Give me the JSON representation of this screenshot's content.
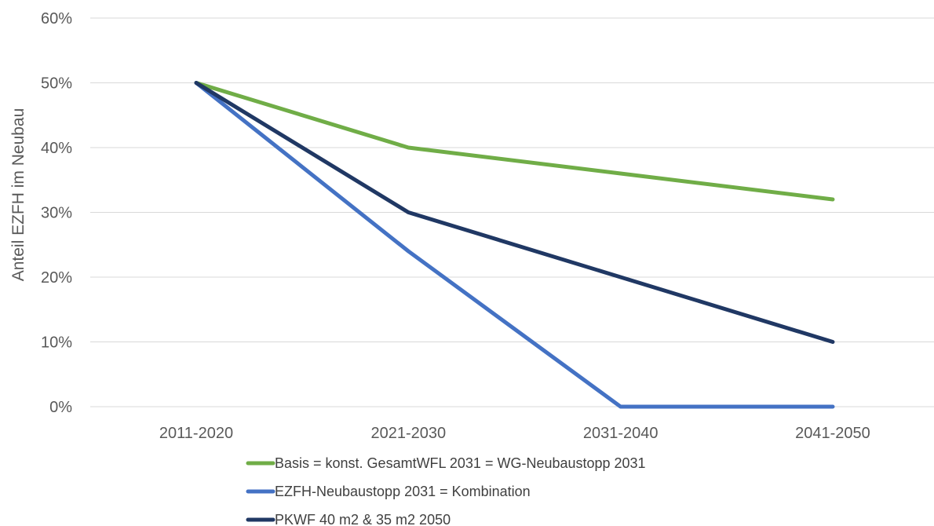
{
  "chart_data": {
    "type": "line",
    "title": "",
    "xlabel": "",
    "ylabel": "Anteil EZFH im Neubau",
    "categories": [
      "2011-2020",
      "2021-2030",
      "2031-2040",
      "2041-2050"
    ],
    "y_ticks": [
      "0%",
      "10%",
      "20%",
      "30%",
      "40%",
      "50%",
      "60%"
    ],
    "ylim": [
      0,
      60
    ],
    "y_unit": "%",
    "grid": true,
    "legend_position": "bottom",
    "series": [
      {
        "name": "Basis = konst. GesamtWFL 2031 = WG-Neubaustopp 2031",
        "color": "#70ad47",
        "values": [
          50,
          40,
          36,
          32
        ]
      },
      {
        "name": "EZFH-Neubaustopp 2031 = Kombination",
        "color": "#4472c4",
        "values": [
          50,
          24,
          0,
          0
        ]
      },
      {
        "name": "PKWF 40 m2 & 35 m2 2050",
        "color": "#203864",
        "values": [
          50,
          30,
          20,
          10
        ]
      }
    ]
  }
}
